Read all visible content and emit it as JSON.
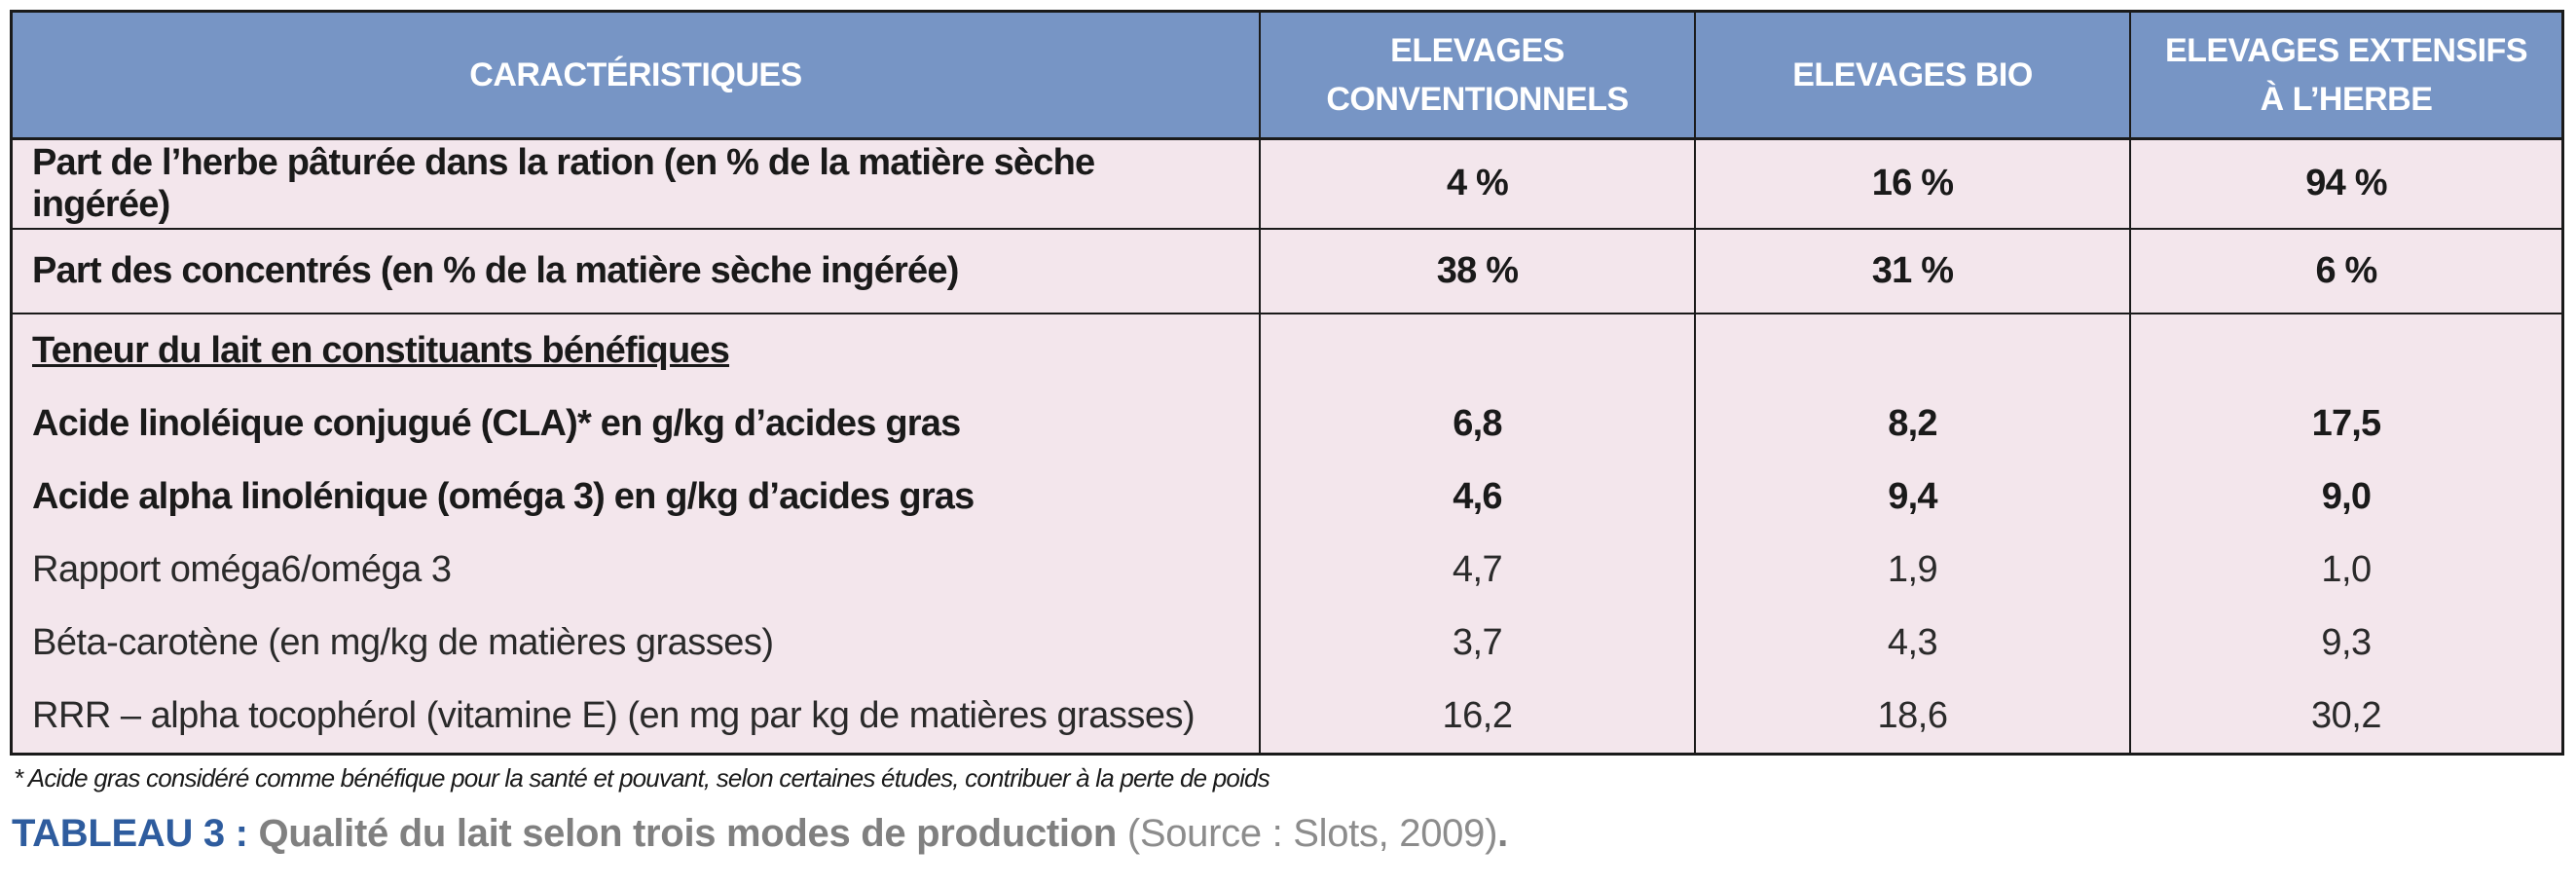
{
  "table": {
    "headers": [
      "CARACTÉRISTIQUES",
      "ELEVAGES CONVENTIONNELS",
      "ELEVAGES BIO",
      "ELEVAGES EXTENSIFS À L’HERBE"
    ],
    "rows": [
      {
        "label": "Part de l’herbe pâturée dans la ration (en % de la matière sèche ingérée)",
        "values": [
          "4 %",
          "16 %",
          "94 %"
        ]
      },
      {
        "label": "Part des concentrés (en % de la matière sèche ingérée)",
        "values": [
          "38 %",
          "31 %",
          "6 %"
        ]
      },
      {
        "label": "Teneur du lait en constituants bénéfiques",
        "values": [
          "",
          "",
          ""
        ]
      },
      {
        "label": "Acide linoléique conjugué (CLA)* en g/kg d’acides gras",
        "values": [
          "6,8",
          "8,2",
          "17,5"
        ]
      },
      {
        "label": "Acide alpha linolénique (oméga 3) en g/kg d’acides gras",
        "values": [
          "4,6",
          "9,4",
          "9,0"
        ]
      },
      {
        "label": "Rapport oméga6/oméga 3",
        "values": [
          "4,7",
          "1,9",
          "1,0"
        ]
      },
      {
        "label": "Béta-carotène (en mg/kg de matières grasses)",
        "values": [
          "3,7",
          "4,3",
          "9,3"
        ]
      },
      {
        "label": "RRR – alpha tocophérol (vitamine E) (en mg par kg de matières grasses)",
        "values": [
          "16,2",
          "18,6",
          "30,2"
        ]
      }
    ]
  },
  "footnote": "* Acide gras considéré comme bénéfique pour la santé et pouvant, selon certaines études, contribuer à la perte de poids",
  "caption": {
    "label": "TABLEAU 3 :",
    "title": "Qualité du lait selon trois modes de production",
    "source": "(Source : Slots, 2009)",
    "end": "."
  }
}
